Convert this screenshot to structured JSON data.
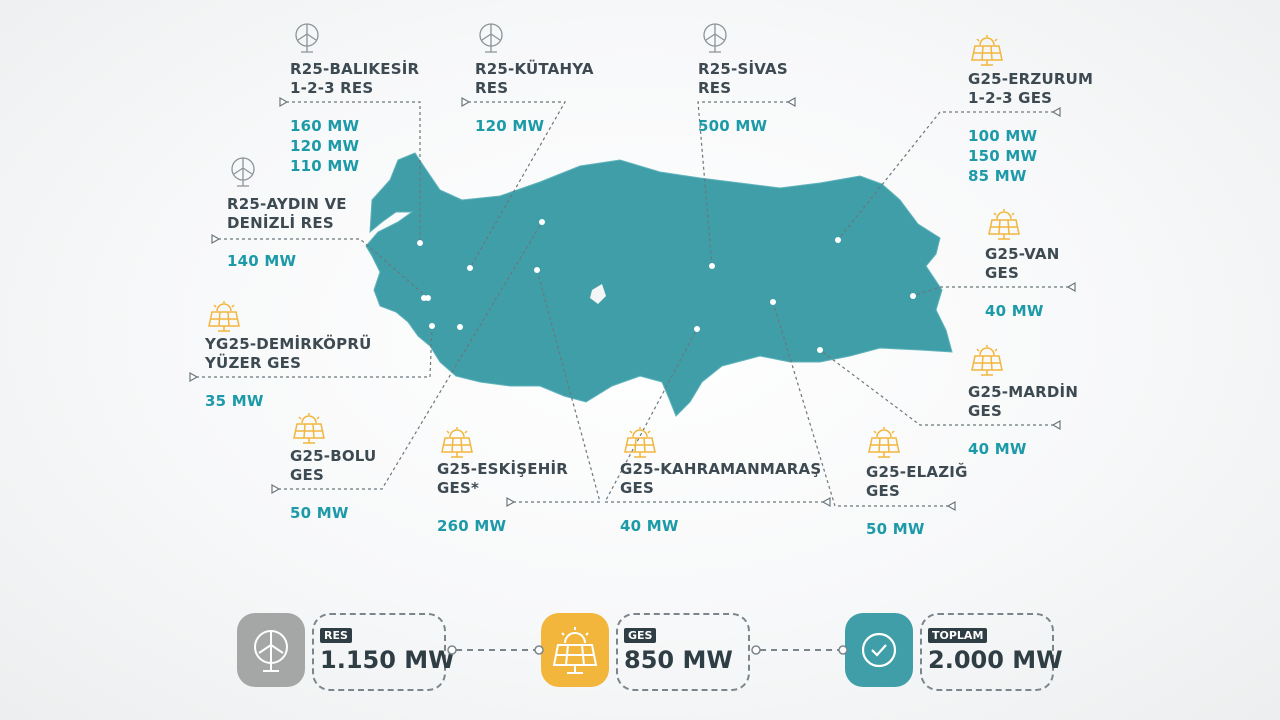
{
  "colors": {
    "map": "#3f9ea8",
    "value": "#1d9aa8",
    "text": "#3d4a52",
    "res": "#a5a6a6",
    "ges": "#f2b63d",
    "total": "#3f9ea8"
  },
  "projects": [
    {
      "icon": "wind-turbine-icon",
      "title": "R25-BALIKESİR\n1-2-3 RES",
      "values": [
        "160 MW",
        "120 MW",
        "110 MW"
      ]
    },
    {
      "icon": "wind-turbine-icon",
      "title": "R25-KÜTAHYA\nRES",
      "values": [
        "120 MW"
      ]
    },
    {
      "icon": "wind-turbine-icon",
      "title": "R25-SİVAS\nRES",
      "values": [
        "500 MW"
      ]
    },
    {
      "icon": "solar-panel-icon",
      "title": "G25-ERZURUM\n1-2-3 GES",
      "values": [
        "100 MW",
        "150 MW",
        "85 MW"
      ]
    },
    {
      "icon": "wind-turbine-icon",
      "title": "R25-AYDIN VE\nDENİZLİ RES",
      "values": [
        "140 MW"
      ]
    },
    {
      "icon": "solar-panel-icon",
      "title": "G25-VAN\nGES",
      "values": [
        "40 MW"
      ]
    },
    {
      "icon": "solar-panel-icon",
      "title": "YG25-DEMİRKÖPRÜ\nYÜZER GES",
      "values": [
        "35 MW"
      ]
    },
    {
      "icon": "solar-panel-icon",
      "title": "G25-MARDİN\nGES",
      "values": [
        "40 MW"
      ]
    },
    {
      "icon": "solar-panel-icon",
      "title": "G25-BOLU\nGES",
      "values": [
        "50 MW"
      ]
    },
    {
      "icon": "solar-panel-icon",
      "title": "G25-ESKİŞEHİR\nGES*",
      "values": [
        "260 MW"
      ]
    },
    {
      "icon": "solar-panel-icon",
      "title": "G25-KAHRAMANMARAŞ\nGES",
      "values": [
        "40 MW"
      ]
    },
    {
      "icon": "solar-panel-icon",
      "title": "G25-ELAZIĞ\nGES",
      "values": [
        "50 MW"
      ]
    }
  ],
  "summary": {
    "res": {
      "label": "RES",
      "value": "1.150 MW",
      "icon": "wind-turbine-icon"
    },
    "ges": {
      "label": "GES",
      "value": "850 MW",
      "icon": "solar-panel-icon"
    },
    "total": {
      "label": "TOPLAM",
      "value": "2.000 MW",
      "icon": "check-circle-icon"
    }
  }
}
